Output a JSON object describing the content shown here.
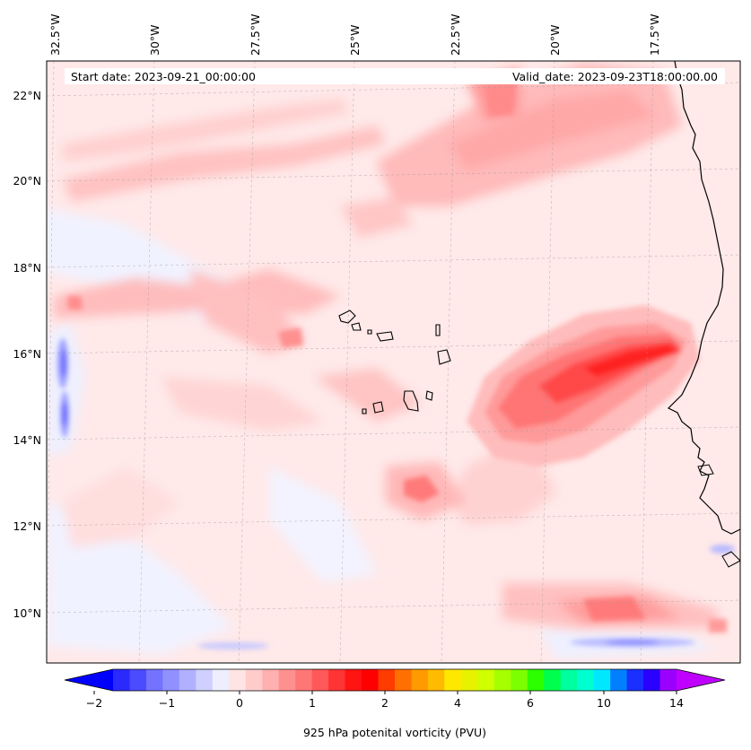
{
  "header": {
    "start_date": "Start date: 2023-09-21_00:00:00",
    "valid_date": "Valid_date: 2023-09-23T18:00:00.00"
  },
  "longitude_labels": [
    "32.5°W",
    "30°W",
    "27.5°W",
    "25°W",
    "22.5°W",
    "20°W",
    "17.5°W"
  ],
  "latitude_labels": [
    "22°N",
    "20°N",
    "18°N",
    "16°N",
    "14°N",
    "12°N",
    "10°N"
  ],
  "colorbar": {
    "title": "925 hPa potenital vorticity (PVU)",
    "tick_labels": [
      "−2",
      "−1",
      "0",
      "1",
      "2",
      "4",
      "6",
      "10",
      "14"
    ],
    "colors": [
      "#0000ff",
      "#2a2aff",
      "#4b4bff",
      "#7373ff",
      "#9090ff",
      "#b0b0ff",
      "#d0d0ff",
      "#eeeeff",
      "#ffe4e4",
      "#ffcccc",
      "#ffb0b0",
      "#ff9090",
      "#ff7676",
      "#ff5858",
      "#ff3434",
      "#ff1414",
      "#ff0000",
      "#ff3c00",
      "#ff7000",
      "#ff9a00",
      "#ffbb00",
      "#ffe800",
      "#e6f200",
      "#cfff00",
      "#a6ff00",
      "#7cff00",
      "#2bff00",
      "#00ff4c",
      "#00ff9f",
      "#00ffd0",
      "#00e8ff",
      "#0080ff",
      "#1a30ff",
      "#2a00ff",
      "#9b00ff",
      "#c000ff"
    ]
  },
  "map": {
    "title": "",
    "field_colors": {
      "background": "#ffe9e9",
      "light_pink": "#ffd6d6",
      "pink": "#ffb9b9",
      "medium": "#ff9898",
      "strong": "#ff6f6f",
      "core": "#ff2a2a",
      "light_blue": "#eef0ff",
      "blue": "#9ea0ff",
      "dark_blue": "#6a6aff"
    }
  }
}
